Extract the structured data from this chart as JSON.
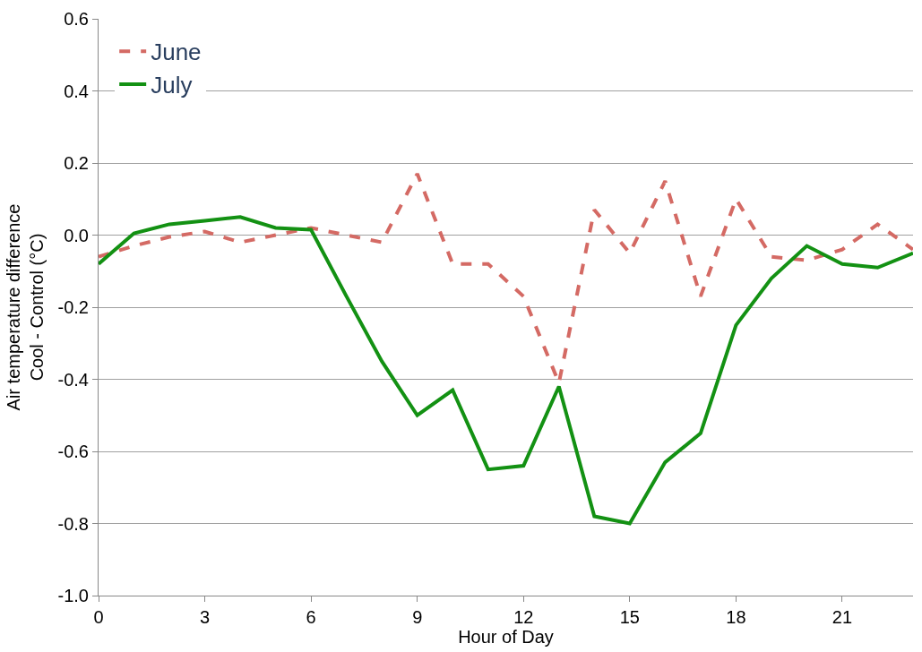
{
  "chart_data": {
    "type": "line",
    "xlabel": "Hour of Day",
    "ylabel": "Air temperature difference\nCool - Control (°C)",
    "x": [
      0,
      1,
      2,
      3,
      4,
      5,
      6,
      7,
      8,
      9,
      10,
      11,
      12,
      13,
      14,
      15,
      16,
      17,
      18,
      19,
      20,
      21,
      22,
      23
    ],
    "series": [
      {
        "name": "June",
        "color": "#d46a64",
        "line_style": "dashed",
        "values": [
          -0.06,
          -0.03,
          -0.005,
          0.01,
          -0.02,
          0.0,
          0.02,
          0.0,
          -0.02,
          0.17,
          -0.08,
          -0.08,
          -0.17,
          -0.41,
          0.07,
          -0.05,
          0.15,
          -0.17,
          0.1,
          -0.06,
          -0.07,
          -0.04,
          0.03,
          -0.04
        ]
      },
      {
        "name": "July",
        "color": "#139113",
        "line_style": "solid",
        "values": [
          -0.08,
          0.005,
          0.03,
          0.04,
          0.05,
          0.02,
          0.015,
          -0.17,
          -0.35,
          -0.5,
          -0.43,
          -0.65,
          -0.64,
          -0.42,
          -0.78,
          -0.8,
          -0.63,
          -0.55,
          -0.25,
          -0.12,
          -0.03,
          -0.08,
          -0.09,
          -0.05
        ]
      }
    ],
    "xlim": [
      0,
      23
    ],
    "xticks": [
      0,
      3,
      6,
      9,
      12,
      15,
      18,
      21
    ],
    "ylim": [
      -1.0,
      0.6
    ],
    "yticks": [
      {
        "value": -1.0,
        "label": "-1.0"
      },
      {
        "value": -0.8,
        "label": "-0.8"
      },
      {
        "value": -0.6,
        "label": "-0.6"
      },
      {
        "value": -0.4,
        "label": "-0.4"
      },
      {
        "value": -0.2,
        "label": "-0.2"
      },
      {
        "value": 0,
        "label": "0.0"
      },
      {
        "value": 0.2,
        "label": "0.2"
      },
      {
        "value": 0.4,
        "label": "0.4"
      },
      {
        "value": 0.6,
        "label": "0.6"
      }
    ],
    "grid": "y",
    "legend": "top left",
    "marker": "none"
  }
}
